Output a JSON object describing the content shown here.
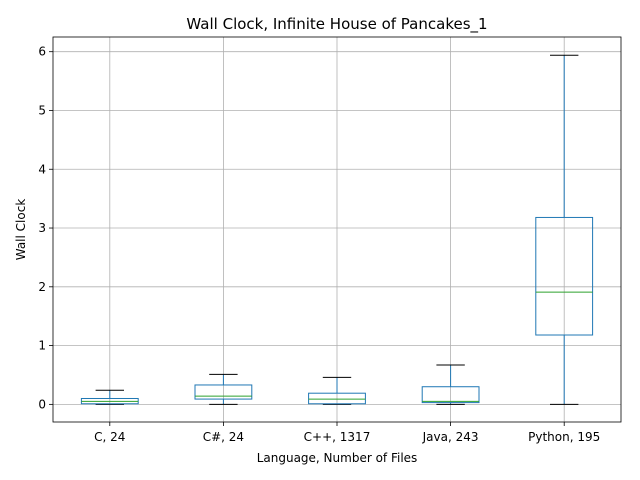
{
  "chart_data": {
    "type": "boxplot",
    "title": "Wall Clock, Infinite House of Pancakes_1",
    "xlabel": "Language, Number of Files",
    "ylabel": "Wall Clock",
    "ylim": [
      -0.3,
      6.25
    ],
    "yticks": [
      0,
      1,
      2,
      3,
      4,
      5,
      6
    ],
    "ytick_labels": [
      "0",
      "1",
      "2",
      "3",
      "4",
      "5",
      "6"
    ],
    "grid": true,
    "categories": [
      "C, 24",
      "C#, 24",
      "C++, 1317",
      "Java, 243",
      "Python, 195"
    ],
    "boxes": [
      {
        "label": "C, 24",
        "whisker_low": 0.0,
        "q1": 0.01,
        "median": 0.05,
        "q3": 0.1,
        "whisker_high": 0.24
      },
      {
        "label": "C#, 24",
        "whisker_low": 0.0,
        "q1": 0.09,
        "median": 0.14,
        "q3": 0.33,
        "whisker_high": 0.51
      },
      {
        "label": "C++, 1317",
        "whisker_low": 0.0,
        "q1": 0.01,
        "median": 0.09,
        "q3": 0.19,
        "whisker_high": 0.46
      },
      {
        "label": "Java, 243",
        "whisker_low": 0.0,
        "q1": 0.03,
        "median": 0.05,
        "q3": 0.3,
        "whisker_high": 0.67
      },
      {
        "label": "Python, 195",
        "whisker_low": 0.0,
        "q1": 1.18,
        "median": 1.91,
        "q3": 3.18,
        "whisker_high": 5.94
      }
    ],
    "colors": {
      "box": "#1f77b4",
      "median": "#2ca02c",
      "cap": "#000000",
      "grid": "#b0b0b0",
      "axis": "#000000"
    }
  }
}
